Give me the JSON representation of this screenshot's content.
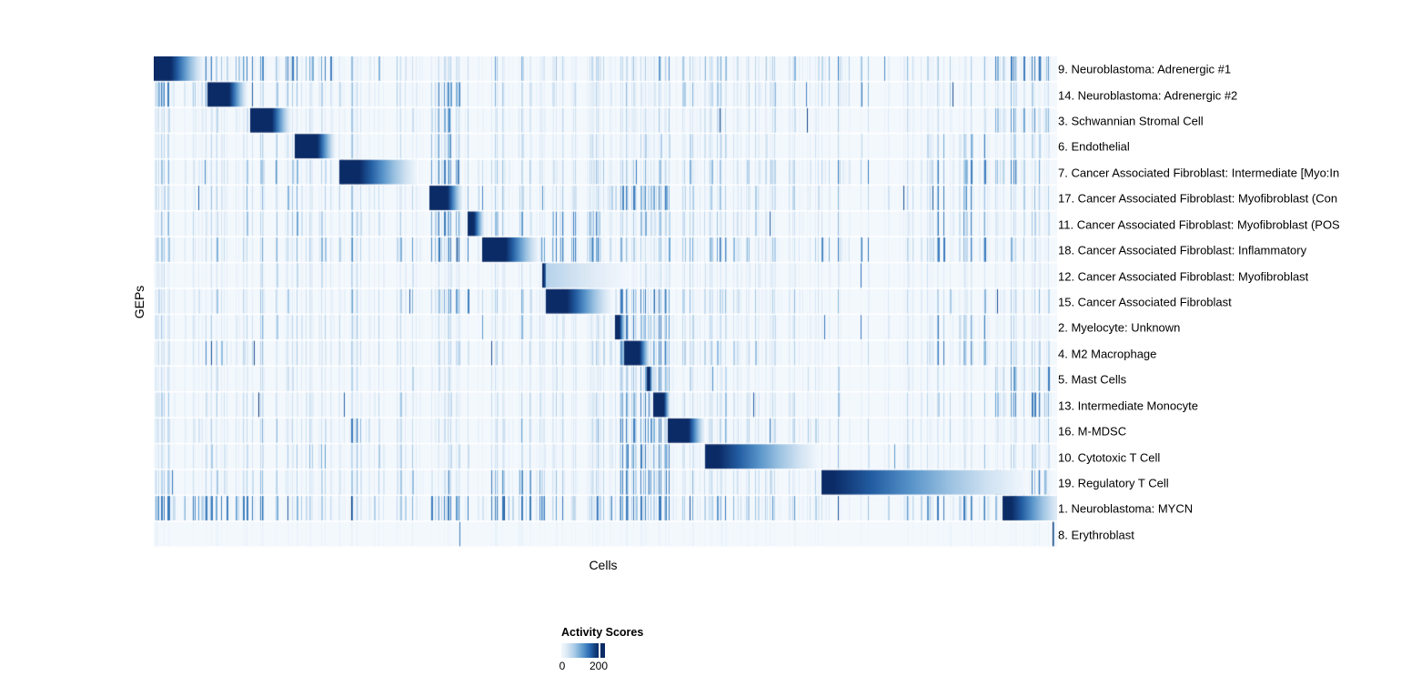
{
  "chart_data": {
    "type": "heatmap",
    "title": "",
    "xlabel": "Cells",
    "ylabel": "GEPs",
    "legend": {
      "title": "Activity Scores",
      "min": 0,
      "max": 200,
      "tick_labels": [
        "0",
        "200"
      ],
      "tick_fraction": 0.854,
      "colormap": [
        {
          "t": 0.0,
          "color": "#f3f8fd"
        },
        {
          "t": 0.15,
          "color": "#dce9f5"
        },
        {
          "t": 0.35,
          "color": "#abcce7"
        },
        {
          "t": 0.55,
          "color": "#66a0d0"
        },
        {
          "t": 0.75,
          "color": "#2b6cb4"
        },
        {
          "t": 0.9,
          "color": "#123f7e"
        },
        {
          "t": 1.0,
          "color": "#0b2b66"
        }
      ],
      "legend_low_color": "#ffffff",
      "legend_high_color": "#0b2b66"
    },
    "rows": [
      {
        "label": "9. Neuroblastoma: Adrenergic #1",
        "blocks": [
          {
            "start": 0.0,
            "solid": 0.019,
            "end": 0.056
          }
        ],
        "density": 0.9,
        "hot": [
          [
            0.0,
            0.2
          ],
          [
            0.74,
            0.8
          ],
          [
            0.93,
            1.0
          ]
        ]
      },
      {
        "label": "14. Neuroblastoma: Adrenergic #2",
        "blocks": [
          {
            "start": 0.0597,
            "solid": 0.0839,
            "end": 0.1041
          }
        ],
        "density": 0.8,
        "hot": [
          [
            0.0,
            0.06
          ],
          [
            0.3,
            0.34
          ],
          [
            0.74,
            0.8
          ]
        ]
      },
      {
        "label": "3. Schwannian Stromal Cell",
        "blocks": [
          {
            "start": 0.1072,
            "solid": 0.1314,
            "end": 0.1527
          }
        ],
        "density": 0.6,
        "hot": [
          [
            0.3,
            0.36
          ],
          [
            0.93,
            1.0
          ]
        ]
      },
      {
        "label": "6. Endothelial",
        "blocks": [
          {
            "start": 0.1567,
            "solid": 0.182,
            "end": 0.2022
          }
        ],
        "density": 0.6,
        "hot": [
          [
            0.3,
            0.36
          ],
          [
            0.86,
            0.93
          ]
        ]
      },
      {
        "label": "7. Cancer Associated Fibroblast: Intermediate [Myo:In",
        "blocks": [
          {
            "start": 0.2063,
            "solid": 0.2285,
            "end": 0.2932
          }
        ],
        "density": 0.85,
        "hot": [
          [
            0.3,
            0.37
          ],
          [
            0.74,
            0.8
          ],
          [
            0.86,
            0.97
          ]
        ]
      },
      {
        "label": "17. Cancer Associated Fibroblast: Myofibroblast (Con",
        "blocks": [
          {
            "start": 0.3064,
            "solid": 0.3266,
            "end": 0.3438
          }
        ],
        "density": 0.85,
        "hot": [
          [
            0.3,
            0.37
          ],
          [
            0.5,
            0.57
          ],
          [
            0.86,
            0.93
          ]
        ]
      },
      {
        "label": "11. Cancer Associated Fibroblast: Myofibroblast (POS",
        "blocks": [
          {
            "start": 0.3489,
            "solid": 0.3559,
            "end": 0.3681
          }
        ],
        "density": 0.8,
        "hot": [
          [
            0.3,
            0.37
          ],
          [
            0.44,
            0.5
          ],
          [
            0.86,
            0.93
          ]
        ]
      },
      {
        "label": "18. Cancer Associated Fibroblast: Inflammatory",
        "blocks": [
          {
            "start": 0.365,
            "solid": 0.3913,
            "end": 0.4287
          }
        ],
        "density": 1.0,
        "hot": [
          [
            0.3,
            0.37
          ],
          [
            0.43,
            0.5
          ],
          [
            0.74,
            0.8
          ],
          [
            0.86,
            0.93
          ]
        ]
      },
      {
        "label": "12. Cancer Associated Fibroblast: Myofibroblast",
        "blocks": [
          {
            "start": 0.4318,
            "solid": 0.4338,
            "end": 0.4399
          },
          {
            "start": 0.4358,
            "solid": 0.4379,
            "end": 0.527,
            "intensity": 0.3
          }
        ],
        "density": 0.5,
        "hot": [
          [
            0.44,
            0.5
          ]
        ]
      },
      {
        "label": "15. Cancer Associated Fibroblast",
        "blocks": [
          {
            "start": 0.4358,
            "solid": 0.4591,
            "end": 0.5096
          }
        ],
        "density": 0.8,
        "hot": [
          [
            0.3,
            0.37
          ],
          [
            0.51,
            0.57
          ]
        ]
      },
      {
        "label": "2. Myelocyte: Unknown",
        "blocks": [
          {
            "start": 0.5126,
            "solid": 0.5177,
            "end": 0.5248
          }
        ],
        "density": 0.7,
        "hot": [
          [
            0.51,
            0.58
          ],
          [
            0.86,
            0.93
          ]
        ]
      },
      {
        "label": "4. M2 Macrophage",
        "blocks": [
          {
            "start": 0.5228,
            "solid": 0.54,
            "end": 0.5521
          }
        ],
        "density": 0.8,
        "hot": [
          [
            0.07,
            0.09
          ],
          [
            0.51,
            0.58
          ],
          [
            0.86,
            0.93
          ]
        ]
      },
      {
        "label": "5. Mast Cells",
        "blocks": [
          {
            "start": 0.5481,
            "solid": 0.5511,
            "end": 0.5551
          }
        ],
        "density": 0.5,
        "hot": [
          [
            0.51,
            0.58
          ],
          [
            0.93,
            1.0
          ]
        ]
      },
      {
        "label": "13. Intermediate Monocyte",
        "blocks": [
          {
            "start": 0.5551,
            "solid": 0.5672,
            "end": 0.5743
          }
        ],
        "density": 0.7,
        "hot": [
          [
            0.51,
            0.58
          ],
          [
            0.93,
            1.0
          ]
        ]
      },
      {
        "label": "16. M-MDSC",
        "blocks": [
          {
            "start": 0.5713,
            "solid": 0.5945,
            "end": 0.6127
          }
        ],
        "density": 0.8,
        "hot": [
          [
            0.21,
            0.24
          ],
          [
            0.51,
            0.58
          ]
        ]
      },
      {
        "label": "10. Cytotoxic T Cell",
        "blocks": [
          {
            "start": 0.6128,
            "solid": 0.628,
            "end": 0.739
          }
        ],
        "density": 0.7,
        "hot": [
          [
            0.17,
            0.19
          ],
          [
            0.51,
            0.58
          ]
        ]
      },
      {
        "label": "19. Regulatory T Cell",
        "blocks": [
          {
            "start": 0.7422,
            "solid": 0.755,
            "end": 0.97
          }
        ],
        "density": 0.8,
        "hot": [
          [
            0.37,
            0.44
          ],
          [
            0.51,
            0.58
          ],
          [
            0.93,
            1.0
          ]
        ]
      },
      {
        "label": "1. Neuroblastoma: MYCN",
        "blocks": [
          {
            "start": 0.9434,
            "solid": 0.9535,
            "end": 1.01
          }
        ],
        "density": 1.4,
        "hot": [
          [
            0.0,
            0.12
          ],
          [
            0.3,
            0.44
          ],
          [
            0.51,
            0.58
          ],
          [
            0.86,
            0.93
          ]
        ]
      },
      {
        "label": "8. Erythroblast",
        "blocks": [
          {
            "start": 0.999,
            "solid": 1.0,
            "end": 1.0
          }
        ],
        "density": 0.12,
        "hot": []
      }
    ]
  }
}
